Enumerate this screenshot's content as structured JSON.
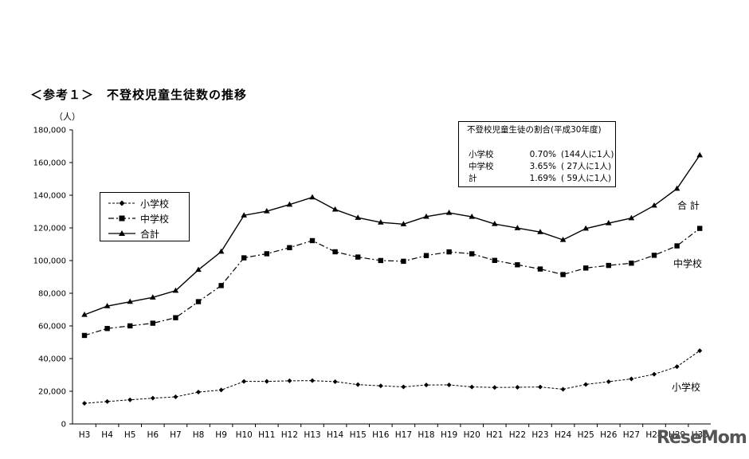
{
  "title": "＜参考１＞　不登校児童生徒数の推移",
  "unit_label": "（人）",
  "note": {
    "title": "不登校児童生徒の割合(平成30年度)",
    "rows": [
      {
        "label": "小学校",
        "pct": "0.70%",
        "ratio": "(144人に1人)"
      },
      {
        "label": "中学校",
        "pct": "3.65%",
        "ratio": "( 27人に1人)"
      },
      {
        "label": "計",
        "pct": "1.69%",
        "ratio": "( 59人に1人)"
      }
    ]
  },
  "legend": [
    {
      "label": "小学校",
      "style": "dashed",
      "marker": "diamond"
    },
    {
      "label": "中学校",
      "style": "dash-dot",
      "marker": "square"
    },
    {
      "label": "合計",
      "style": "solid",
      "marker": "triangle"
    }
  ],
  "end_labels": {
    "total": "合 計",
    "middle": "中学校",
    "elementary": "小学校"
  },
  "watermark": "ReseMom",
  "chart_data": {
    "type": "line",
    "title": "＜参考１＞　不登校児童生徒数の推移",
    "xlabel": "",
    "ylabel": "（人）",
    "ylim": [
      0,
      180000
    ],
    "y_ticks": [
      0,
      20000,
      40000,
      60000,
      80000,
      100000,
      120000,
      140000,
      160000,
      180000
    ],
    "y_tick_labels": [
      "0",
      "20,000",
      "40,000",
      "60,000",
      "80,000",
      "100,000",
      "120,000",
      "140,000",
      "160,000",
      "180,000"
    ],
    "grid": false,
    "legend_position": "left",
    "categories": [
      "H3",
      "H4",
      "H5",
      "H6",
      "H7",
      "H8",
      "H9",
      "H10",
      "H11",
      "H12",
      "H13",
      "H14",
      "H15",
      "H16",
      "H17",
      "H18",
      "H19",
      "H20",
      "H21",
      "H22",
      "H23",
      "H24",
      "H25",
      "H26",
      "H27",
      "H28",
      "H29",
      "H30"
    ],
    "series": [
      {
        "name": "小学校",
        "color": "#000000",
        "line": "dashed",
        "marker": "diamond",
        "values": [
          12645,
          13710,
          14769,
          15786,
          16569,
          19498,
          20765,
          26017,
          26047,
          26373,
          26511,
          25869,
          24077,
          23318,
          22709,
          23825,
          23927,
          22652,
          22327,
          22463,
          22622,
          21243,
          24175,
          25864,
          27583,
          30448,
          35032,
          44841
        ]
      },
      {
        "name": "中学校",
        "color": "#000000",
        "line": "dash-dot",
        "marker": "square",
        "values": [
          54172,
          58421,
          60039,
          61663,
          65022,
          74853,
          84701,
          101675,
          104180,
          107913,
          112211,
          105383,
          102149,
          100040,
          99578,
          103069,
          105328,
          104153,
          100105,
          97428,
          94836,
          91446,
          95442,
          97033,
          98408,
          103235,
          108999,
          119687
        ]
      },
      {
        "name": "合計",
        "color": "#000000",
        "line": "solid",
        "marker": "triangle",
        "values": [
          66817,
          72131,
          74808,
          77449,
          81591,
          94351,
          105466,
          127692,
          130227,
          134286,
          138722,
          131252,
          126226,
          123358,
          122287,
          126894,
          129255,
          126805,
          122432,
          119891,
          117458,
          112689,
          119617,
          122897,
          125991,
          133683,
          144031,
          164528
        ]
      }
    ]
  }
}
